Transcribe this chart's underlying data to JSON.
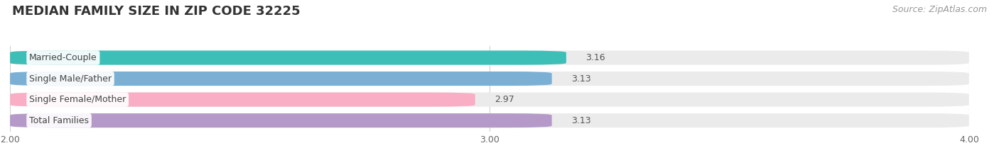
{
  "title": "MEDIAN FAMILY SIZE IN ZIP CODE 32225",
  "source": "Source: ZipAtlas.com",
  "categories": [
    "Married-Couple",
    "Single Male/Father",
    "Single Female/Mother",
    "Total Families"
  ],
  "values": [
    3.16,
    3.13,
    2.97,
    3.13
  ],
  "bar_colors": [
    "#3dbfb8",
    "#7bafd4",
    "#f9aec5",
    "#b59ac9"
  ],
  "bar_bg_color": "#ebebeb",
  "xlim": [
    2.0,
    4.0
  ],
  "xticks": [
    2.0,
    3.0,
    4.0
  ],
  "xtick_labels": [
    "2.00",
    "3.00",
    "4.00"
  ],
  "title_fontsize": 13,
  "label_fontsize": 9,
  "value_fontsize": 9,
  "source_fontsize": 9,
  "background_color": "#ffffff",
  "bar_height": 0.68,
  "bar_spacing": 1.0
}
